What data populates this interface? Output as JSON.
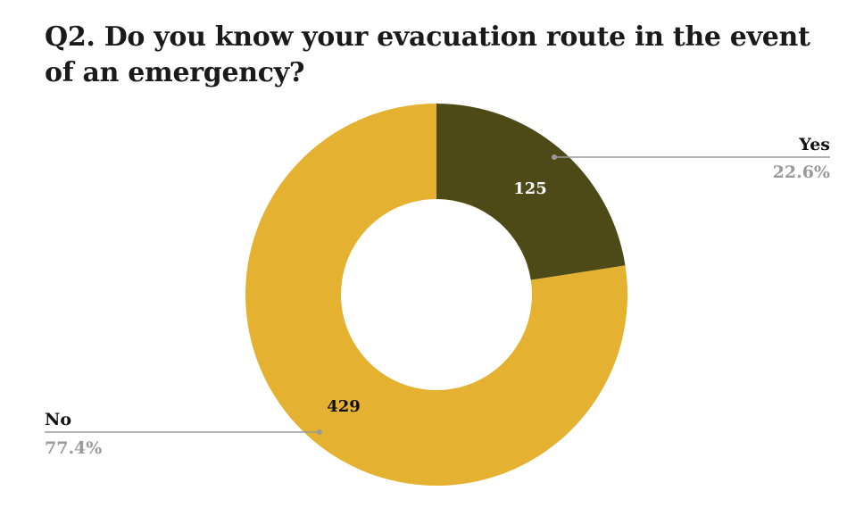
{
  "chart_data": {
    "type": "pie",
    "title": "Q2. Do you know your evacuation route in the event of an emergency?",
    "categories": [
      "Yes",
      "No"
    ],
    "values": [
      125,
      429
    ],
    "percent_labels": [
      "22.6%",
      "77.4%"
    ],
    "colors": [
      "#4d4a17",
      "#e4b230"
    ],
    "value_label_colors": [
      "#ffffff",
      "#111111"
    ],
    "legend": "none",
    "label_placement": "outside-with-leader-lines"
  }
}
